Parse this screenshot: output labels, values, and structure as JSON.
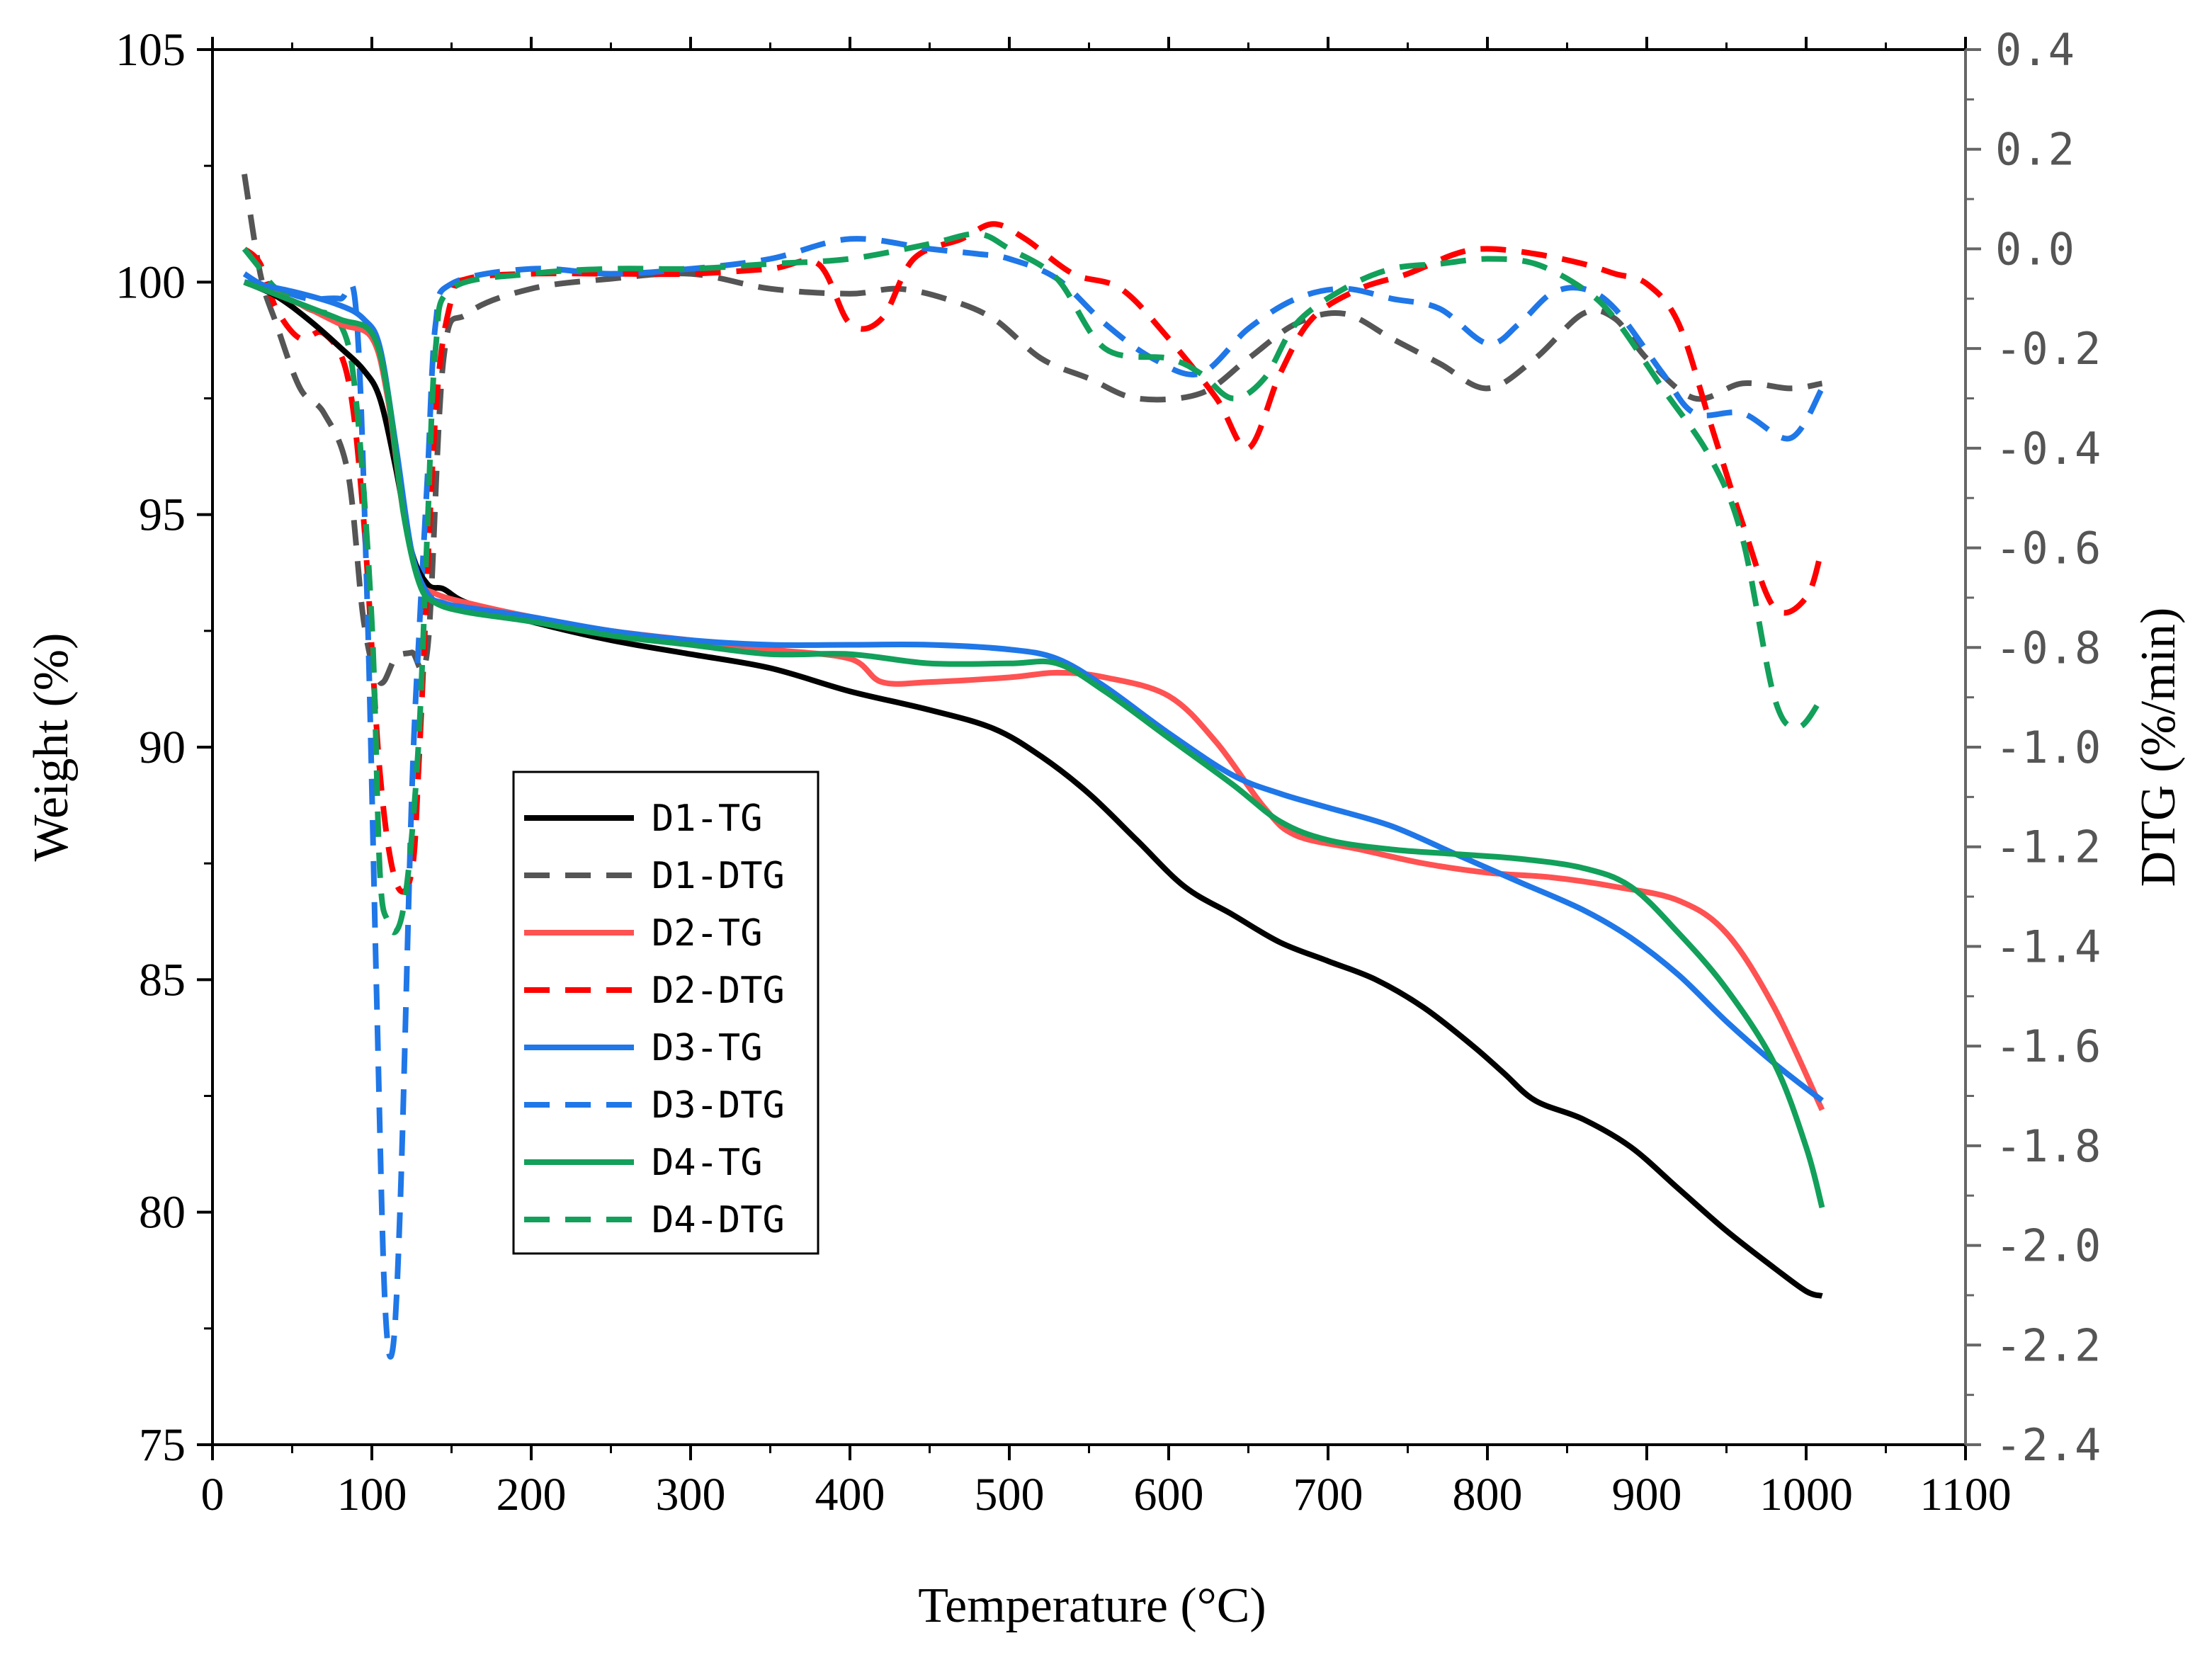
{
  "chart_data": {
    "type": "line",
    "x_axis": {
      "label": "Temperature (°C)",
      "range": [
        0,
        1100
      ],
      "ticks": [
        0,
        100,
        200,
        300,
        400,
        500,
        600,
        700,
        800,
        900,
        1000,
        1100
      ]
    },
    "y_left": {
      "label": "Weight (%)",
      "range": [
        75,
        105
      ],
      "ticks": [
        75,
        80,
        85,
        90,
        95,
        100,
        105
      ]
    },
    "y_right": {
      "label": "DTG (%/min)",
      "range": [
        -2.4,
        0.4
      ],
      "ticks": [
        -2.4,
        -2.2,
        -2.0,
        -1.8,
        -1.6,
        -1.4,
        -1.2,
        -1.0,
        -0.8,
        -0.6,
        -0.4,
        -0.2,
        0.0,
        0.2,
        0.4
      ],
      "tick_labels": [
        "-2.4",
        "-2.2",
        "-2.0",
        "-1.8",
        "-1.6",
        "-1.4",
        "-1.2",
        "-1.0",
        "-0.8",
        "-0.6",
        "-0.4",
        "-0.2",
        "0.0",
        "0.2",
        "0.4"
      ]
    },
    "legend_position": "center-left",
    "series": [
      {
        "name": "D1-TG",
        "axis": "left",
        "style": "solid",
        "color": "#000000",
        "x": [
          20,
          40,
          60,
          80,
          95,
          105,
          115,
          125,
          135,
          145,
          160,
          200,
          250,
          300,
          350,
          400,
          450,
          490,
          520,
          550,
          580,
          610,
          640,
          670,
          700,
          730,
          760,
          790,
          810,
          830,
          860,
          890,
          920,
          950,
          980,
          1000,
          1010
        ],
        "y": [
          100,
          99.7,
          99.2,
          98.6,
          98.1,
          97.5,
          96,
          94.2,
          93.5,
          93.4,
          93.1,
          92.7,
          92.3,
          92.0,
          91.7,
          91.2,
          90.8,
          90.4,
          89.8,
          89.0,
          88.0,
          87.0,
          86.4,
          85.8,
          85.4,
          85.0,
          84.4,
          83.6,
          83.0,
          82.4,
          82.0,
          81.4,
          80.5,
          79.6,
          78.8,
          78.3,
          78.2
        ]
      },
      {
        "name": "D1-DTG",
        "axis": "right",
        "style": "dashed",
        "color": "#555555",
        "x": [
          20,
          30,
          40,
          55,
          70,
          85,
          95,
          105,
          115,
          125,
          135,
          145,
          160,
          200,
          250,
          300,
          350,
          400,
          430,
          460,
          490,
          520,
          550,
          580,
          620,
          650,
          680,
          710,
          740,
          770,
          800,
          830,
          860,
          880,
          900,
          930,
          960,
          990,
          1010
        ],
        "y": [
          0.15,
          -0.05,
          -0.15,
          -0.28,
          -0.33,
          -0.45,
          -0.75,
          -0.87,
          -0.82,
          -0.81,
          -0.8,
          -0.22,
          -0.13,
          -0.08,
          -0.06,
          -0.05,
          -0.08,
          -0.09,
          -0.08,
          -0.1,
          -0.14,
          -0.22,
          -0.26,
          -0.3,
          -0.29,
          -0.22,
          -0.15,
          -0.13,
          -0.18,
          -0.23,
          -0.28,
          -0.22,
          -0.13,
          -0.14,
          -0.22,
          -0.3,
          -0.27,
          -0.28,
          -0.27
        ]
      },
      {
        "name": "D2-TG",
        "axis": "left",
        "style": "solid",
        "color": "#ff5252",
        "x": [
          20,
          50,
          80,
          100,
          110,
          120,
          130,
          140,
          160,
          200,
          250,
          300,
          350,
          400,
          420,
          450,
          500,
          530,
          560,
          600,
          630,
          660,
          680,
          720,
          760,
          800,
          840,
          880,
          920,
          950,
          980,
          1010
        ],
        "y": [
          100,
          99.6,
          99.1,
          98.8,
          97.5,
          95,
          93.6,
          93.3,
          93.1,
          92.8,
          92.5,
          92.3,
          92.1,
          91.9,
          91.4,
          91.4,
          91.5,
          91.6,
          91.5,
          91.1,
          90.1,
          88.7,
          88.1,
          87.8,
          87.5,
          87.3,
          87.2,
          87.0,
          86.7,
          86.0,
          84.4,
          82.2
        ]
      },
      {
        "name": "D2-DTG",
        "axis": "right",
        "style": "dashed",
        "color": "#ff0000",
        "x": [
          20,
          30,
          40,
          55,
          70,
          85,
          95,
          105,
          115,
          125,
          130,
          140,
          150,
          160,
          200,
          250,
          300,
          350,
          380,
          400,
          420,
          440,
          470,
          490,
          510,
          540,
          570,
          600,
          630,
          650,
          670,
          690,
          720,
          750,
          780,
          800,
          830,
          860,
          880,
          900,
          920,
          940,
          960,
          980,
          1000,
          1010
        ],
        "y": [
          0.0,
          -0.03,
          -0.12,
          -0.18,
          -0.17,
          -0.26,
          -0.55,
          -1.05,
          -1.27,
          -1.25,
          -1.0,
          -0.33,
          -0.1,
          -0.06,
          -0.05,
          -0.05,
          -0.05,
          -0.04,
          -0.03,
          -0.15,
          -0.14,
          -0.02,
          0.02,
          0.05,
          0.02,
          -0.05,
          -0.08,
          -0.18,
          -0.3,
          -0.4,
          -0.25,
          -0.14,
          -0.08,
          -0.05,
          -0.01,
          0.0,
          -0.01,
          -0.03,
          -0.05,
          -0.07,
          -0.15,
          -0.35,
          -0.55,
          -0.72,
          -0.7,
          -0.6
        ]
      },
      {
        "name": "D3-TG",
        "axis": "left",
        "style": "solid",
        "color": "#1f77e8",
        "x": [
          20,
          50,
          80,
          95,
          105,
          115,
          125,
          135,
          145,
          160,
          200,
          250,
          300,
          350,
          400,
          450,
          500,
          530,
          560,
          600,
          640,
          670,
          700,
          740,
          780,
          820,
          860,
          890,
          920,
          950,
          980,
          1010
        ],
        "y": [
          100,
          99.8,
          99.5,
          99.2,
          98.6,
          96.5,
          94.2,
          93.3,
          93.1,
          93.0,
          92.8,
          92.5,
          92.3,
          92.2,
          92.2,
          92.2,
          92.1,
          91.9,
          91.3,
          90.3,
          89.4,
          89.0,
          88.7,
          88.3,
          87.7,
          87.1,
          86.5,
          85.9,
          85.1,
          84.1,
          83.2,
          82.4
        ]
      },
      {
        "name": "D3-DTG",
        "axis": "right",
        "style": "dashed",
        "color": "#1f77e8",
        "x": [
          20,
          30,
          40,
          60,
          80,
          90,
          97,
          103,
          108,
          113,
          118,
          125,
          130,
          135,
          140,
          150,
          200,
          250,
          300,
          350,
          400,
          450,
          480,
          500,
          530,
          560,
          590,
          620,
          650,
          680,
          710,
          740,
          770,
          800,
          820,
          840,
          860,
          880,
          910,
          930,
          960,
          990,
          1010
        ],
        "y": [
          -0.05,
          -0.07,
          -0.08,
          -0.1,
          -0.1,
          -0.12,
          -0.7,
          -1.5,
          -2.1,
          -2.21,
          -1.9,
          -1.1,
          -0.75,
          -0.45,
          -0.15,
          -0.07,
          -0.04,
          -0.05,
          -0.04,
          -0.02,
          0.02,
          0.0,
          -0.01,
          -0.02,
          -0.06,
          -0.15,
          -0.22,
          -0.25,
          -0.16,
          -0.1,
          -0.08,
          -0.1,
          -0.12,
          -0.19,
          -0.15,
          -0.09,
          -0.08,
          -0.12,
          -0.25,
          -0.33,
          -0.33,
          -0.38,
          -0.28
        ]
      },
      {
        "name": "D4-TG",
        "axis": "left",
        "style": "solid",
        "color": "#12a05a",
        "x": [
          20,
          50,
          80,
          100,
          110,
          120,
          130,
          140,
          160,
          200,
          250,
          300,
          350,
          400,
          450,
          500,
          530,
          560,
          600,
          640,
          670,
          700,
          740,
          780,
          820,
          860,
          890,
          920,
          950,
          980,
          1000,
          1010
        ],
        "y": [
          100,
          99.6,
          99.2,
          98.9,
          97.6,
          95,
          93.5,
          93.1,
          92.9,
          92.7,
          92.4,
          92.2,
          92.0,
          92.0,
          91.8,
          91.8,
          91.8,
          91.2,
          90.2,
          89.2,
          88.4,
          88.0,
          87.8,
          87.7,
          87.6,
          87.4,
          87.0,
          86.0,
          84.8,
          83.2,
          81.4,
          80.1
        ]
      },
      {
        "name": "D4-DTG",
        "axis": "right",
        "style": "dashed",
        "color": "#12a05a",
        "x": [
          20,
          30,
          40,
          60,
          80,
          90,
          100,
          105,
          110,
          115,
          120,
          125,
          130,
          135,
          140,
          150,
          200,
          250,
          300,
          350,
          400,
          450,
          480,
          500,
          530,
          560,
          600,
          620,
          640,
          660,
          680,
          710,
          740,
          770,
          800,
          830,
          860,
          880,
          910,
          940,
          960,
          980,
          995,
          1010
        ],
        "y": [
          0.0,
          -0.04,
          -0.08,
          -0.12,
          -0.15,
          -0.3,
          -0.75,
          -1.25,
          -1.35,
          -1.37,
          -1.32,
          -1.18,
          -0.95,
          -0.55,
          -0.2,
          -0.08,
          -0.05,
          -0.04,
          -0.04,
          -0.03,
          -0.02,
          0.01,
          0.03,
          0.0,
          -0.06,
          -0.2,
          -0.22,
          -0.25,
          -0.3,
          -0.26,
          -0.15,
          -0.08,
          -0.04,
          -0.03,
          -0.02,
          -0.03,
          -0.08,
          -0.14,
          -0.28,
          -0.42,
          -0.58,
          -0.9,
          -0.96,
          -0.9
        ]
      }
    ]
  }
}
